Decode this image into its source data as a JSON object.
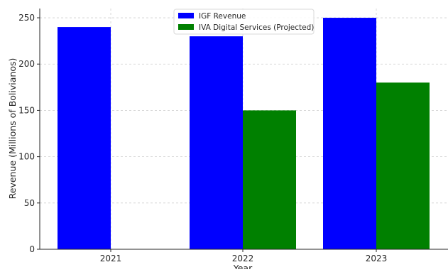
{
  "chart_data": {
    "type": "bar",
    "title": "",
    "xlabel": "Year",
    "ylabel": "Revenue (Millions of Bolivianos)",
    "categories": [
      "2021",
      "2022",
      "2023"
    ],
    "series": [
      {
        "name": "IGF Revenue",
        "color": "#0000ff",
        "values": [
          240,
          230,
          250
        ]
      },
      {
        "name": "IVA Digital Services (Projected)",
        "color": "#008000",
        "values": [
          null,
          150,
          180
        ]
      }
    ],
    "ylim": [
      0,
      260
    ],
    "yticks": [
      0,
      50,
      100,
      150,
      200,
      250
    ],
    "grid": true,
    "legend_position": "top-center"
  }
}
